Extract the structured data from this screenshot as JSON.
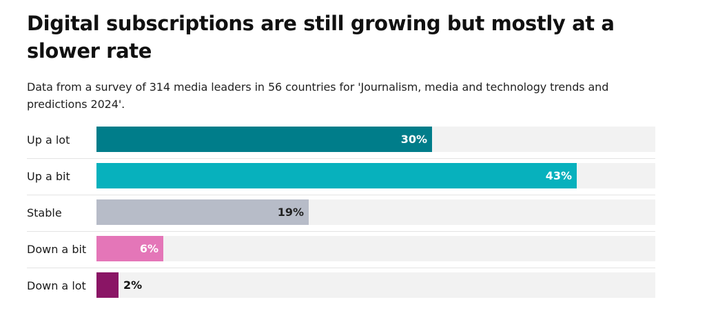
{
  "chart_data": {
    "type": "bar",
    "orientation": "horizontal",
    "title": "Digital subscriptions are still growing but mostly at a slower rate",
    "subtitle": "Data from a survey of 314 media leaders in 56 countries for 'Journalism, media and technology trends and predictions 2024'.",
    "categories": [
      "Up a lot",
      "Up a bit",
      "Stable",
      "Down a bit",
      "Down a lot"
    ],
    "values": [
      30,
      43,
      19,
      6,
      2
    ],
    "value_labels": [
      "30%",
      "43%",
      "19%",
      "6%",
      "2%"
    ],
    "colors": [
      "#007d8a",
      "#07b1bd",
      "#b7bcc8",
      "#e476b8",
      "#8a1565"
    ],
    "label_colors": [
      "#ffffff",
      "#ffffff",
      "#222222",
      "#ffffff",
      "#111111"
    ],
    "xlim": [
      0,
      50
    ],
    "xlabel": "",
    "ylabel": ""
  }
}
